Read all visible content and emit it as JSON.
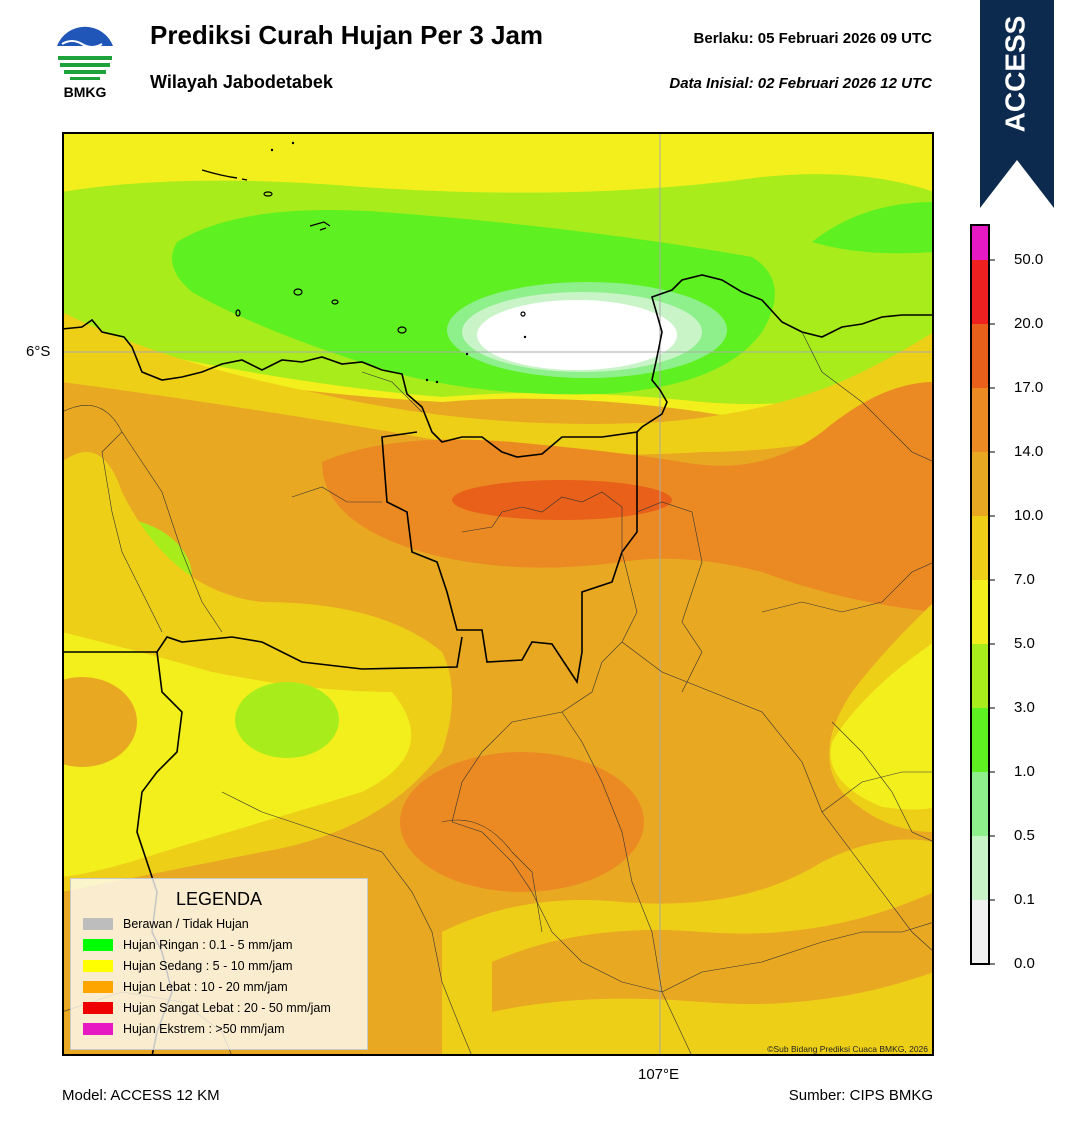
{
  "header": {
    "title": "Prediksi Curah Hujan Per 3 Jam",
    "subtitle": "Wilayah Jabodetabek",
    "valid_label": "Berlaku:  05 Februari 2026 09 UTC",
    "init_label": "Data Inisial:  02 Februari 2026 12 UTC",
    "logo_text": "BMKG",
    "badge_text": "ACCESS"
  },
  "map": {
    "lat_label": "6°S",
    "lon_label": "107°E",
    "credit": "©Sub Bidang Prediksi Cuaca BMKG, 2026"
  },
  "legend": {
    "title": "LEGENDA",
    "items": [
      {
        "label": "Berawan / Tidak Hujan",
        "color": "#bdbdbd"
      },
      {
        "label": "Hujan Ringan : 0.1 - 5 mm/jam",
        "color": "#00ff00"
      },
      {
        "label": "Hujan Sedang : 5 - 10 mm/jam",
        "color": "#ffff00"
      },
      {
        "label": "Hujan Lebat : 10 - 20 mm/jam",
        "color": "#ffa500"
      },
      {
        "label": "Hujan Sangat Lebat : 20 - 50 mm/jam",
        "color": "#ee0000"
      },
      {
        "label": "Hujan Ekstrem : >50 mm/jam",
        "color": "#e619c3"
      }
    ]
  },
  "colorbar": {
    "ticks": [
      "50.0",
      "20.0",
      "17.0",
      "14.0",
      "10.0",
      "7.0",
      "5.0",
      "3.0",
      "1.0",
      "0.5",
      "0.1",
      "0.0"
    ],
    "colors": [
      "#e619c3",
      "#ee2020",
      "#e8601a",
      "#eb8a22",
      "#e8a822",
      "#eecf18",
      "#f2ef1c",
      "#a8ec1c",
      "#5ef020",
      "#8ef08a",
      "#c8f4c8",
      "#f1f1f1"
    ]
  },
  "footer": {
    "model": "Model: ACCESS 12 KM",
    "source": "Sumber: CIPS BMKG"
  }
}
